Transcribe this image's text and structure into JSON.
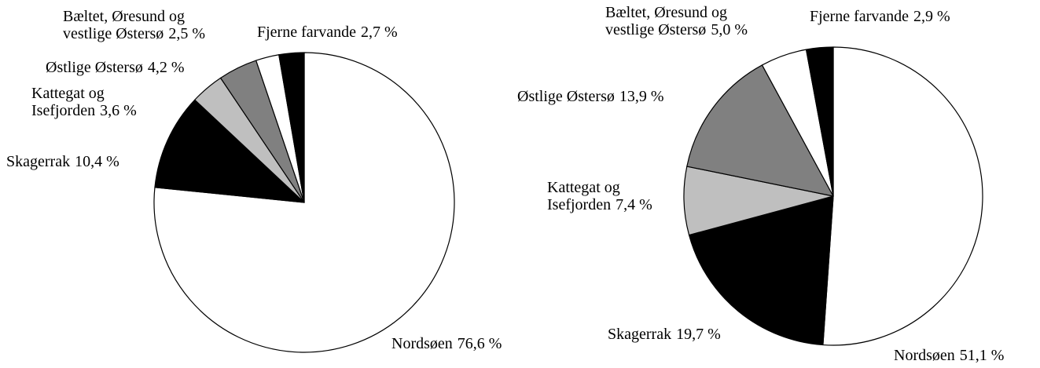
{
  "chart_data": [
    {
      "type": "pie",
      "categories": [
        "Nordsøen",
        "Skagerrak",
        "Kattegat og Isefjorden",
        "Østlige Østersø",
        "Bæltet, Øresund og vestlige Østersø",
        "Fjerne farvande"
      ],
      "values": [
        76.6,
        10.4,
        3.6,
        4.2,
        2.5,
        2.7
      ],
      "value_labels": [
        "76,6 %",
        "10,4 %",
        "3,6 %",
        "4,2 %",
        "2,5 %",
        "2,7 %"
      ],
      "colors": [
        "#ffffff",
        "#000000",
        "#bfbfbf",
        "#808080",
        "#ffffff",
        "#000000"
      ]
    },
    {
      "type": "pie",
      "categories": [
        "Nordsøen",
        "Skagerrak",
        "Kattegat og Isefjorden",
        "Østlige Østersø",
        "Bæltet, Øresund og vestlige Østersø",
        "Fjerne farvande"
      ],
      "values": [
        51.1,
        19.7,
        7.4,
        13.9,
        5.0,
        2.9
      ],
      "value_labels": [
        "51,1 %",
        "19,7 %",
        "7,4 %",
        "13,9 %",
        "5,0 %",
        "2,9 %"
      ],
      "colors": [
        "#ffffff",
        "#000000",
        "#bfbfbf",
        "#808080",
        "#ffffff",
        "#000000"
      ]
    }
  ]
}
